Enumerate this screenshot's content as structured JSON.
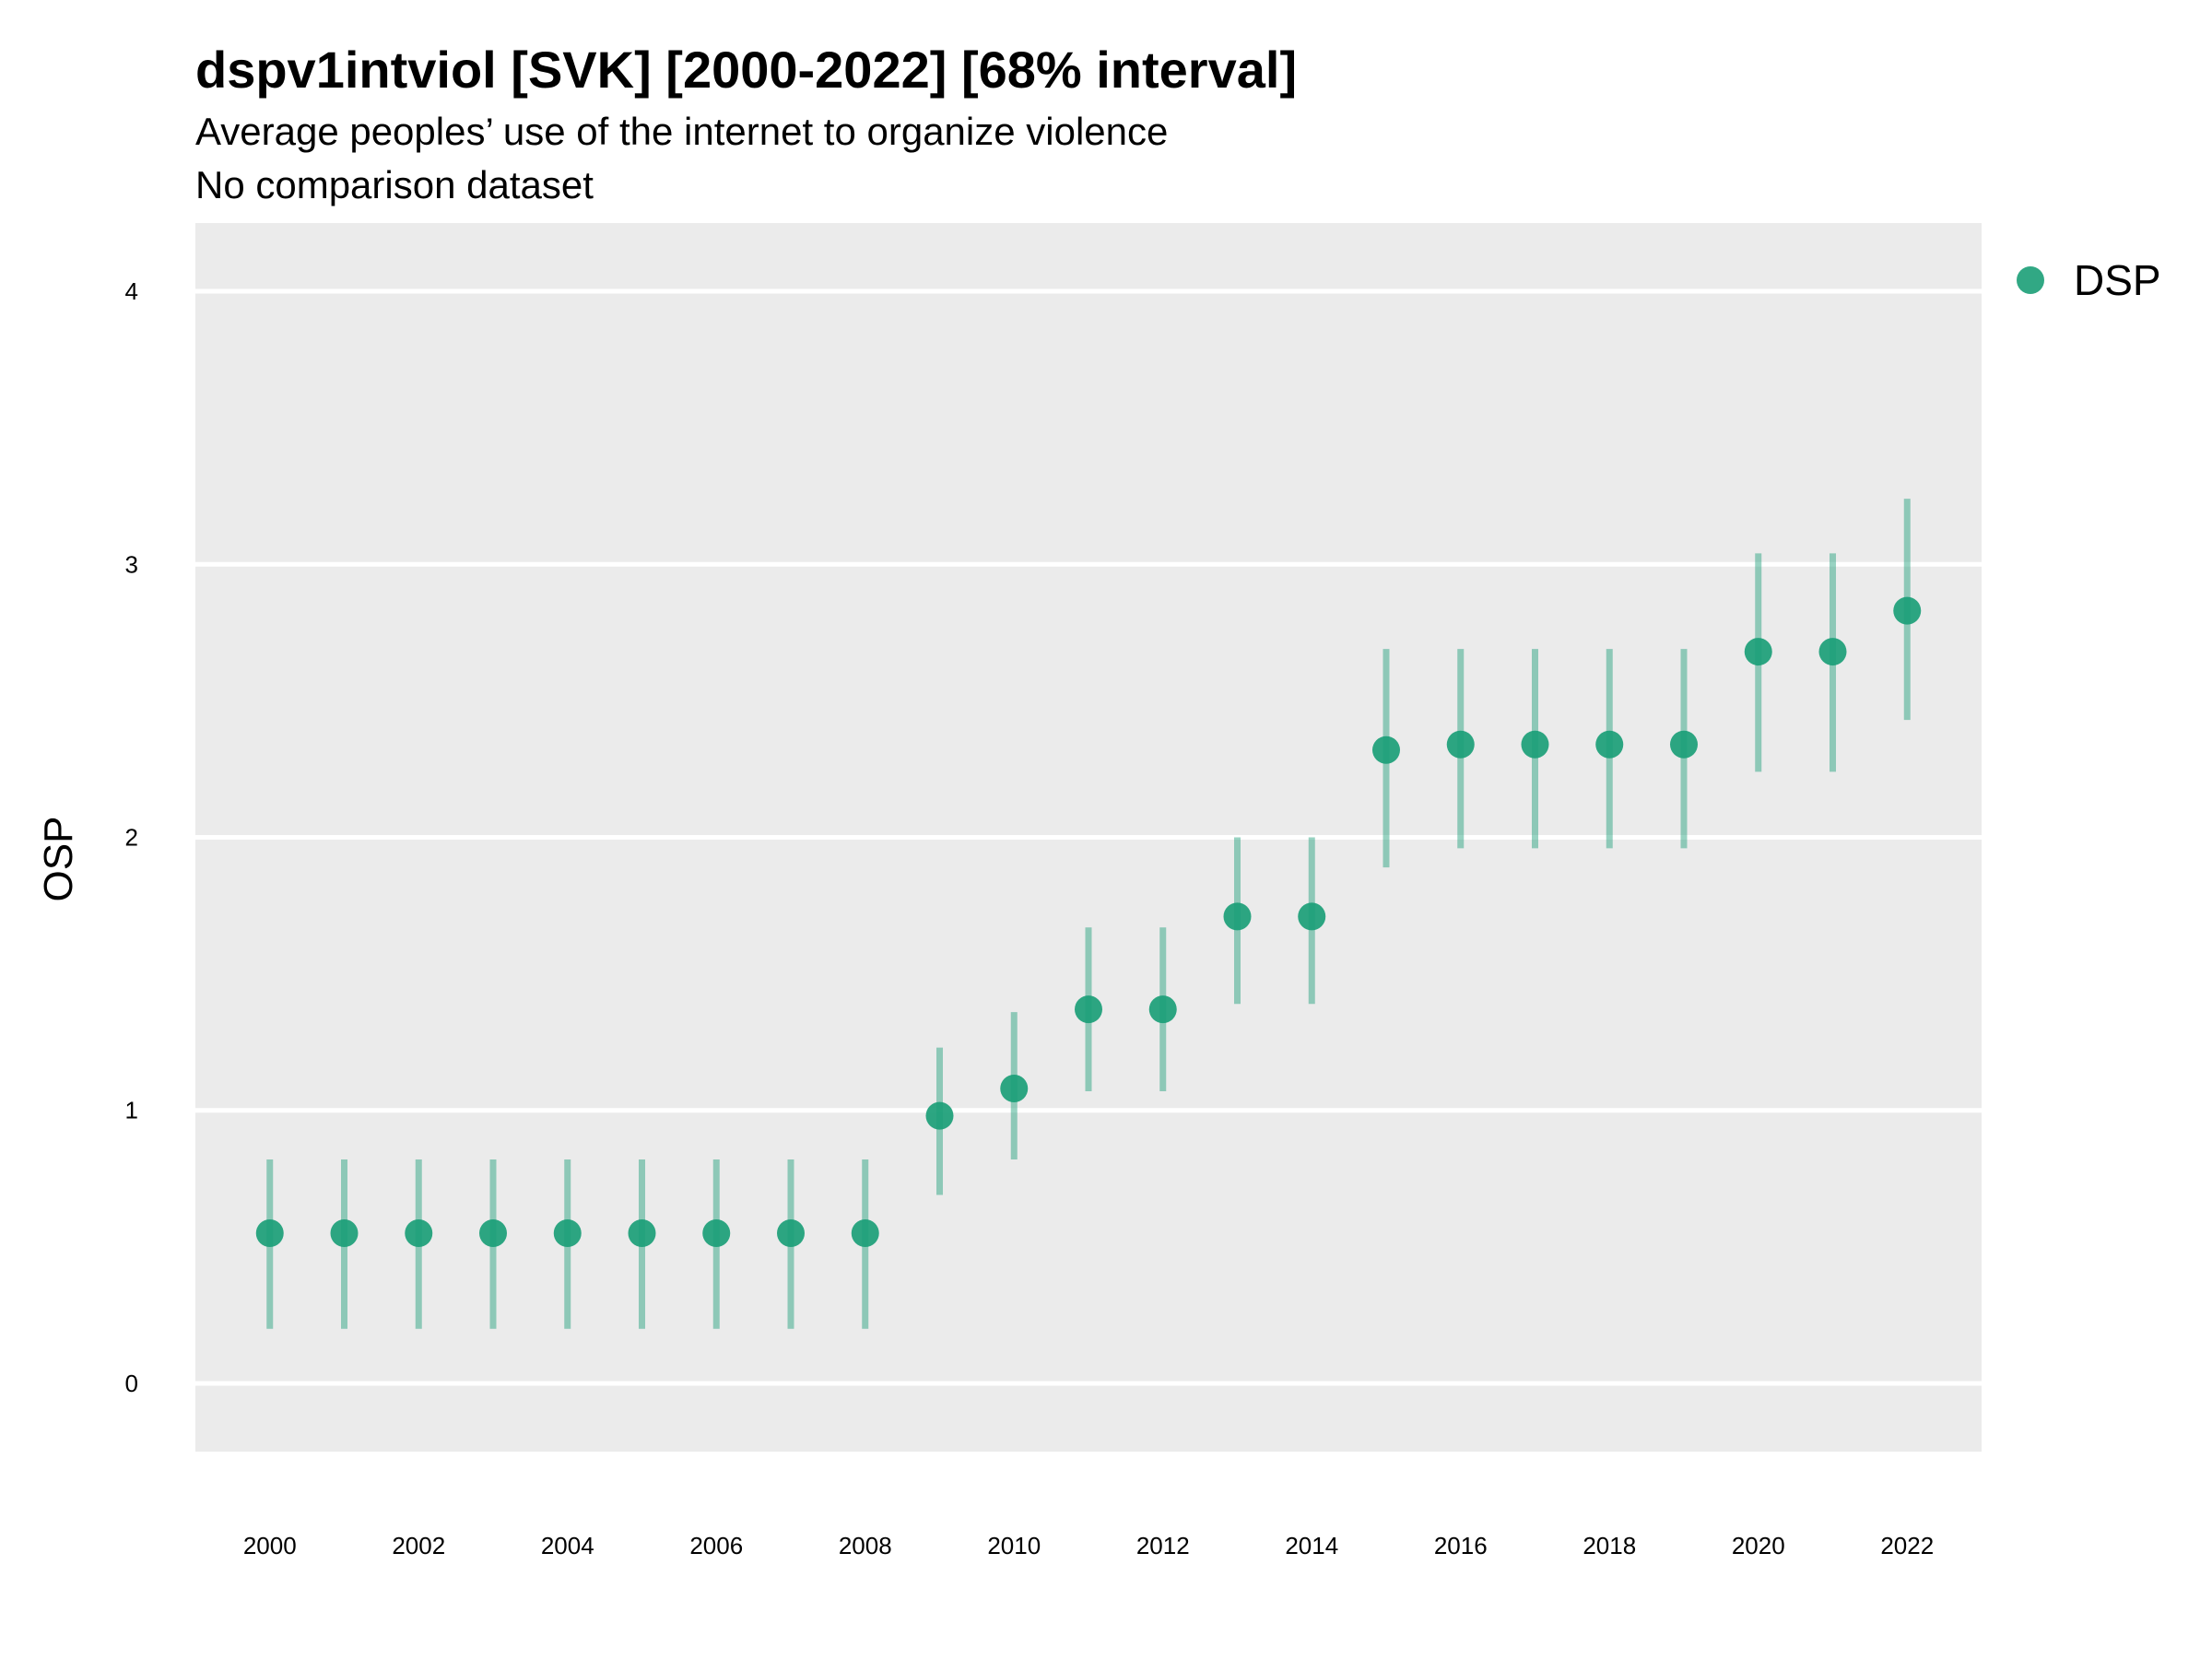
{
  "chart_data": {
    "type": "scatter",
    "title": "dspv1intviol [SVK] [2000-2022] [68% interval]",
    "subtitle": "Average peoples’ use of the internet to organize violence",
    "subtitle2": "No comparison dataset",
    "xlabel": "",
    "ylabel": "OSP",
    "ylim": [
      -0.25,
      4.25
    ],
    "xlim": [
      1999,
      2023
    ],
    "y_ticks": [
      "0",
      "1",
      "2",
      "3",
      "4"
    ],
    "x_ticks": [
      "2000",
      "2002",
      "2004",
      "2006",
      "2008",
      "2010",
      "2012",
      "2014",
      "2016",
      "2018",
      "2020",
      "2022"
    ],
    "grid": true,
    "legend_position": "top-right",
    "series": [
      {
        "name": "DSP",
        "color": "#1b9e77",
        "points": [
          {
            "x": 2000,
            "y": 0.55,
            "low": 0.2,
            "high": 0.82
          },
          {
            "x": 2001,
            "y": 0.55,
            "low": 0.2,
            "high": 0.82
          },
          {
            "x": 2002,
            "y": 0.55,
            "low": 0.2,
            "high": 0.82
          },
          {
            "x": 2003,
            "y": 0.55,
            "low": 0.2,
            "high": 0.82
          },
          {
            "x": 2004,
            "y": 0.55,
            "low": 0.2,
            "high": 0.82
          },
          {
            "x": 2005,
            "y": 0.55,
            "low": 0.2,
            "high": 0.82
          },
          {
            "x": 2006,
            "y": 0.55,
            "low": 0.2,
            "high": 0.82
          },
          {
            "x": 2007,
            "y": 0.55,
            "low": 0.2,
            "high": 0.82
          },
          {
            "x": 2008,
            "y": 0.55,
            "low": 0.2,
            "high": 0.82
          },
          {
            "x": 2009,
            "y": 0.98,
            "low": 0.69,
            "high": 1.23
          },
          {
            "x": 2010,
            "y": 1.08,
            "low": 0.82,
            "high": 1.36
          },
          {
            "x": 2011,
            "y": 1.37,
            "low": 1.07,
            "high": 1.67
          },
          {
            "x": 2012,
            "y": 1.37,
            "low": 1.07,
            "high": 1.67
          },
          {
            "x": 2013,
            "y": 1.71,
            "low": 1.39,
            "high": 2.0
          },
          {
            "x": 2014,
            "y": 1.71,
            "low": 1.39,
            "high": 2.0
          },
          {
            "x": 2015,
            "y": 2.32,
            "low": 1.89,
            "high": 2.69
          },
          {
            "x": 2016,
            "y": 2.34,
            "low": 1.96,
            "high": 2.69
          },
          {
            "x": 2017,
            "y": 2.34,
            "low": 1.96,
            "high": 2.69
          },
          {
            "x": 2018,
            "y": 2.34,
            "low": 1.96,
            "high": 2.69
          },
          {
            "x": 2019,
            "y": 2.34,
            "low": 1.96,
            "high": 2.69
          },
          {
            "x": 2020,
            "y": 2.68,
            "low": 2.24,
            "high": 3.04
          },
          {
            "x": 2021,
            "y": 2.68,
            "low": 2.24,
            "high": 3.04
          },
          {
            "x": 2022,
            "y": 2.83,
            "low": 2.43,
            "high": 3.24
          }
        ]
      }
    ]
  }
}
